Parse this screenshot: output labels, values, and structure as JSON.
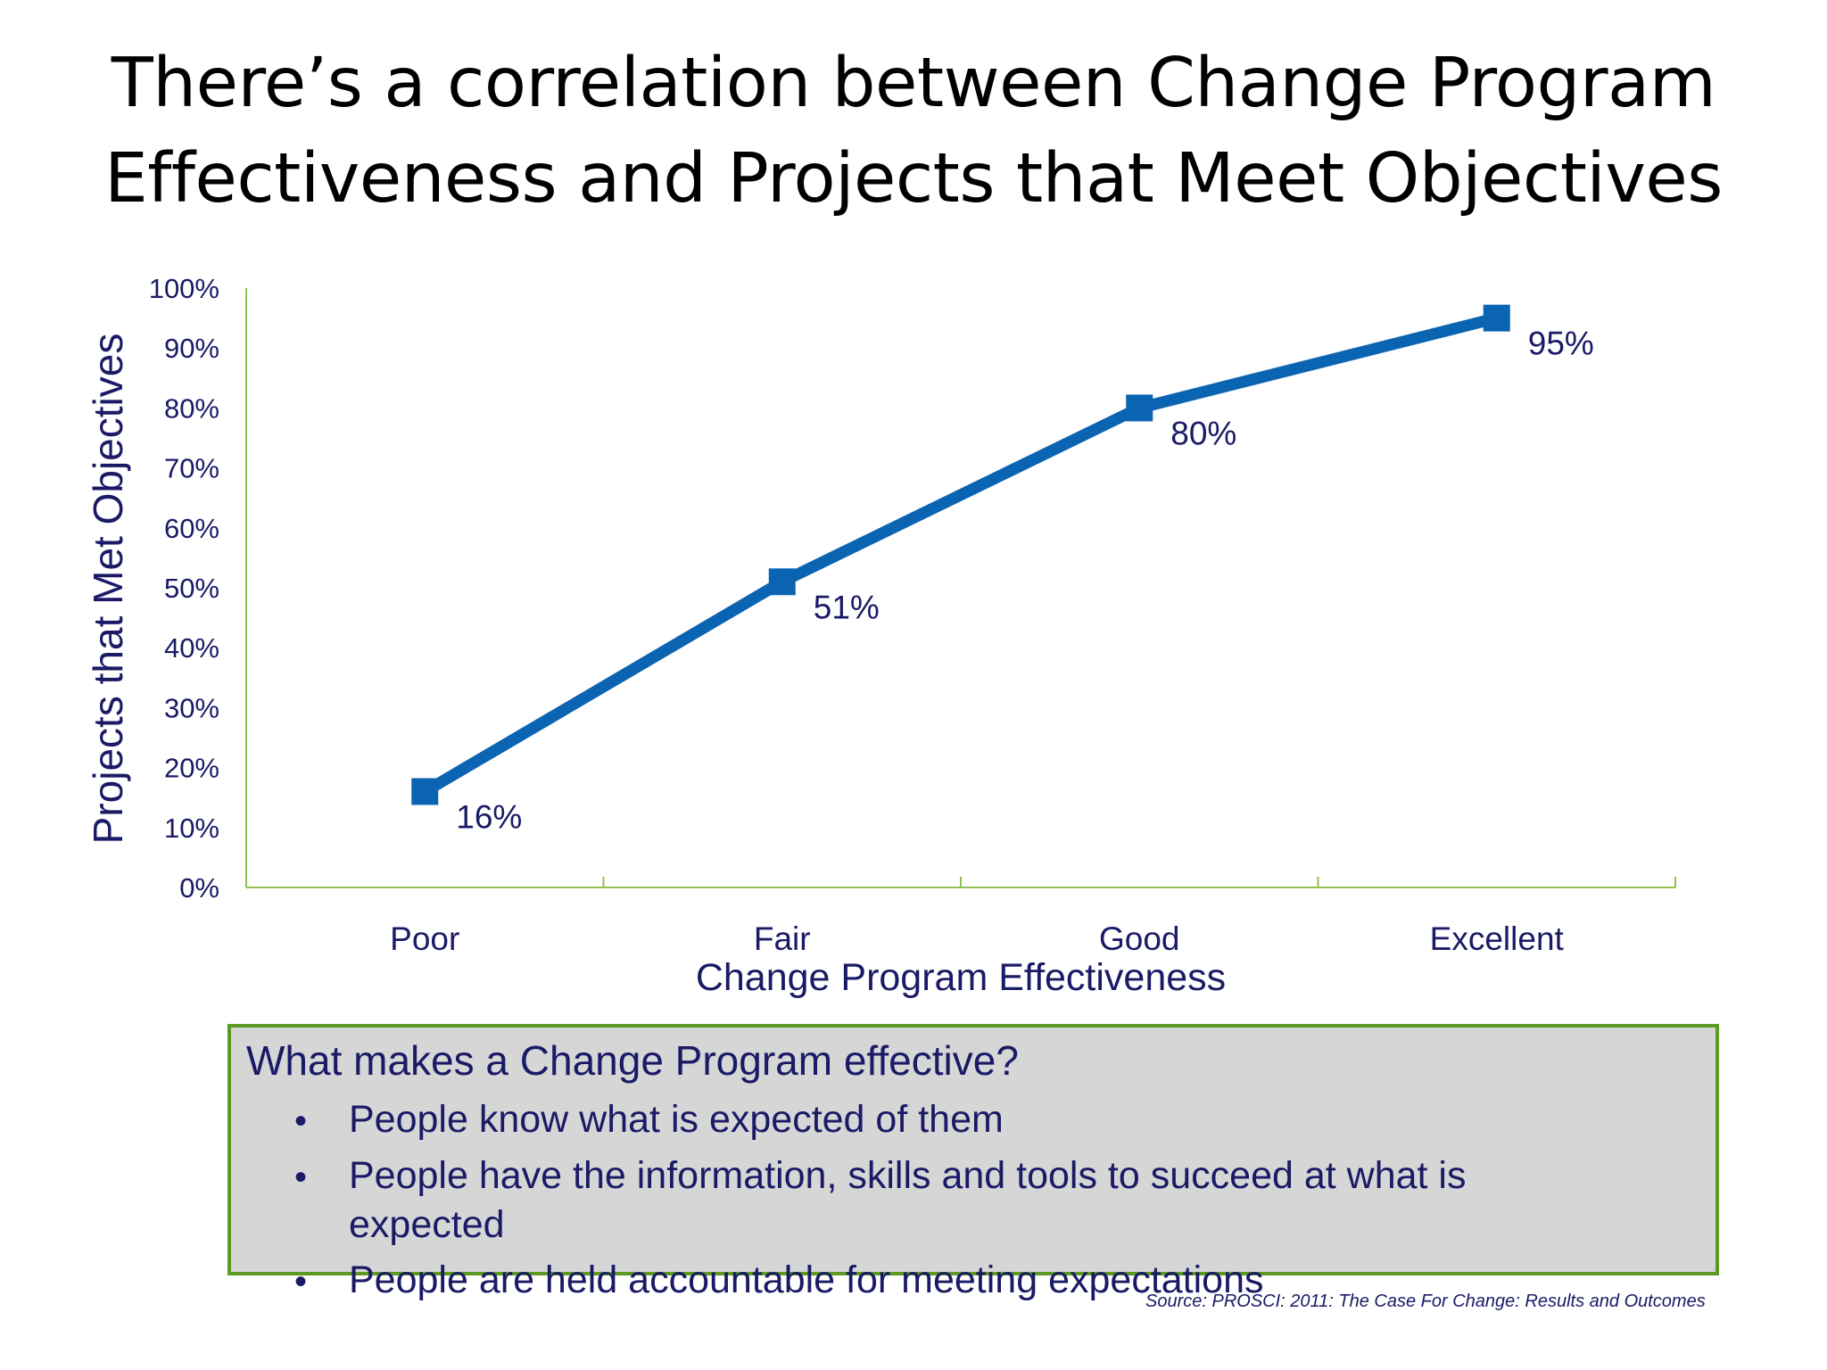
{
  "title": {
    "line1": "There’s a correlation between Change Program",
    "line2": "Effectiveness and Projects that Meet Objectives"
  },
  "chart_data": {
    "type": "line",
    "categories": [
      "Poor",
      "Fair",
      "Good",
      "Excellent"
    ],
    "series": [
      {
        "values": [
          16,
          51,
          80,
          95
        ]
      }
    ],
    "data_labels": [
      "16%",
      "51%",
      "80%",
      "95%"
    ],
    "yticks": [
      "0%",
      "10%",
      "20%",
      "30%",
      "40%",
      "50%",
      "60%",
      "70%",
      "80%",
      "90%",
      "100%"
    ],
    "ylim": [
      0,
      100
    ],
    "xlabel": "Change Program Effectiveness",
    "ylabel": "Projects that Met Objectives",
    "grid": false,
    "line_color": "#0b64b2",
    "axis_color": "#92c050",
    "text_color": "#1a1a66"
  },
  "callout": {
    "heading": "What makes a Change Program effective?",
    "bullet_symbol": "•",
    "bullets": [
      "People know what is expected of them",
      "People have the information, skills and tools to succeed at what is expected",
      "People are held accountable for meeting expectations"
    ],
    "border_color": "#5c9a23",
    "background": "#d6d6d6"
  },
  "source": "Source: PROSCI: 2011: The Case For Change: Results and Outcomes"
}
